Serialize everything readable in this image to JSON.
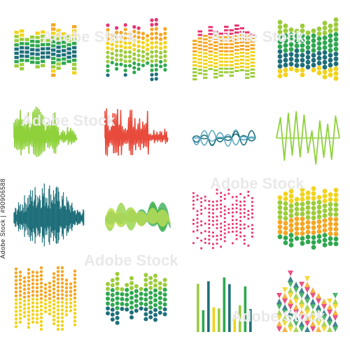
{
  "watermark": {
    "id_text": "Adobe Stock | #90906588",
    "brand": "Adobe Stock",
    "brand_instances": 6
  },
  "palette": {
    "red": "#e84b3c",
    "orange": "#f5a623",
    "yellow": "#f2d31b",
    "lime": "#9ccc3a",
    "green": "#2ea84f",
    "teal": "#1e6f7a",
    "pink": "#e8336f",
    "light_green": "#8ed13b"
  },
  "icons": [
    {
      "name": "equalizer-bars-icon-1",
      "style": "bars",
      "colors": [
        "#e84b3c",
        "#f5a623",
        "#f2d31b",
        "#9ccc3a",
        "#2ea84f",
        "#1e6f7a"
      ]
    },
    {
      "name": "equalizer-dots-icon-1",
      "style": "dots",
      "colors": [
        "#e8336f",
        "#f5a623",
        "#f2d31b",
        "#9ccc3a",
        "#2ea84f",
        "#1e6f7a"
      ]
    },
    {
      "name": "equalizer-stripes-icon",
      "style": "stripes",
      "colors": [
        "#e8336f",
        "#f5a623",
        "#f2d31b",
        "#9ccc3a"
      ]
    },
    {
      "name": "equalizer-hex-icon-1",
      "style": "hexdots",
      "colors": [
        "#9ccc3a",
        "#2ea84f",
        "#1e6f7a",
        "#f2d31b"
      ]
    },
    {
      "name": "waveform-lines-green-icon",
      "style": "spikes",
      "colors": [
        "#8ed13b"
      ]
    },
    {
      "name": "waveform-lines-red-icon",
      "style": "spikes",
      "colors": [
        "#e84b3c"
      ]
    },
    {
      "name": "waveform-curves-teal-icon",
      "style": "curves",
      "colors": [
        "#1e6f7a",
        "#5aa9c4"
      ]
    },
    {
      "name": "waveform-zigzag-green-icon",
      "style": "zigzag",
      "colors": [
        "#8ed13b"
      ]
    },
    {
      "name": "waveform-dense-teal-icon",
      "style": "dense",
      "colors": [
        "#1e6f7a"
      ]
    },
    {
      "name": "waveform-blobs-green-icon",
      "style": "blobs",
      "colors": [
        "#8ed13b",
        "#2ea84f",
        "#c7e05a"
      ]
    },
    {
      "name": "equalizer-pink-dots-icon",
      "style": "pinkdots",
      "colors": [
        "#e8336f"
      ]
    },
    {
      "name": "equalizer-hex-yellow-icon",
      "style": "hexdots",
      "colors": [
        "#f2d31b",
        "#9ccc3a",
        "#f5a623",
        "#2ea84f"
      ]
    },
    {
      "name": "equalizer-orange-dots-icon",
      "style": "orangedots",
      "colors": [
        "#f5a623",
        "#f2d31b"
      ]
    },
    {
      "name": "equalizer-hex-teal-icon",
      "style": "hexband",
      "colors": [
        "#9ccc3a",
        "#2ea84f",
        "#1e6f7a"
      ]
    },
    {
      "name": "equalizer-thin-bars-icon",
      "style": "thinbars",
      "colors": [
        "#9ccc3a",
        "#2ea84f",
        "#1e6f7a",
        "#f2d31b"
      ]
    },
    {
      "name": "equalizer-triangles-icon",
      "style": "triangles",
      "colors": [
        "#e8336f",
        "#f5a623",
        "#f2d31b",
        "#9ccc3a",
        "#2ea84f",
        "#1e6f7a"
      ]
    }
  ]
}
